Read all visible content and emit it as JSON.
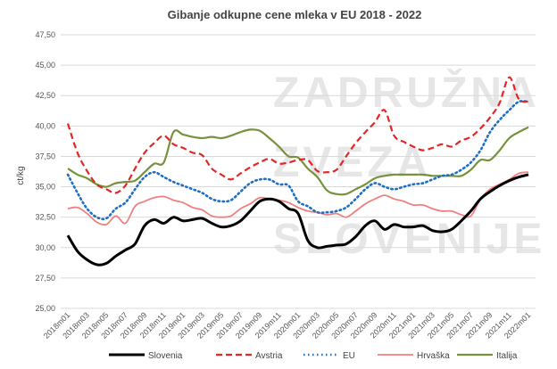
{
  "chart_data": {
    "type": "line",
    "title": "Gibanje odkupne cene mleka v EU 2018 - 2022",
    "ylabel": "ct/kg",
    "xlabel": "",
    "ylim": [
      25,
      47.5
    ],
    "yticks": [
      "25,00",
      "27,50",
      "30,00",
      "32,50",
      "35,00",
      "37,50",
      "40,00",
      "42,50",
      "45,00",
      "47,50"
    ],
    "grid": true,
    "legend": "bottom",
    "watermark": [
      "ZADRUŽNA",
      "ZVEZA",
      "SLOVENIJE"
    ],
    "x": [
      "2018m01",
      "2018m02",
      "2018m03",
      "2018m04",
      "2018m05",
      "2018m06",
      "2018m07",
      "2018m08",
      "2018m09",
      "2018m10",
      "2018m11",
      "2018m12",
      "2019m01",
      "2019m02",
      "2019m03",
      "2019m04",
      "2019m05",
      "2019m06",
      "2019m07",
      "2019m08",
      "2019m09",
      "2019m10",
      "2019m11",
      "2019m12",
      "2020m01",
      "2020m02",
      "2020m03",
      "2020m04",
      "2020m05",
      "2020m06",
      "2020m07",
      "2020m08",
      "2020m09",
      "2020m10",
      "2020m11",
      "2020m12",
      "2021m01",
      "2021m02",
      "2021m03",
      "2021m04",
      "2021m05",
      "2021m06",
      "2021m07",
      "2021m08",
      "2021m09",
      "2021m10",
      "2021m11",
      "2021m12",
      "2022m01"
    ],
    "xticks": [
      "2018m01",
      "2018m03",
      "2018m05",
      "2018m07",
      "2018m09",
      "2018m11",
      "2019m01",
      "2019m03",
      "2019m05",
      "2019m07",
      "2019m09",
      "2019m11",
      "2020m01",
      "2020m03",
      "2020m05",
      "2020m07",
      "2020m09",
      "2020m11",
      "2021m01",
      "2021m03",
      "2021m05",
      "2021m07",
      "2021m09",
      "2021m11",
      "2022m01"
    ],
    "series": [
      {
        "name": "Slovenia",
        "color": "#000000",
        "dash": "solid",
        "values": [
          31.0,
          29.7,
          29.0,
          28.6,
          28.7,
          29.3,
          29.8,
          30.3,
          31.8,
          32.3,
          32.0,
          32.5,
          32.2,
          32.3,
          32.4,
          32.0,
          31.7,
          31.8,
          32.2,
          33.0,
          33.8,
          34.0,
          33.8,
          33.2,
          32.8,
          30.6,
          30.0,
          30.1,
          30.2,
          30.3,
          30.9,
          31.8,
          32.2,
          31.5,
          31.9,
          31.7,
          31.7,
          31.8,
          31.4,
          31.3,
          31.5,
          32.2,
          33.0,
          34.0,
          34.6,
          35.1,
          35.5,
          35.8,
          36.0
        ]
      },
      {
        "name": "Avstria",
        "color": "#e32626",
        "dash": "dashed",
        "values": [
          40.2,
          37.8,
          36.3,
          35.2,
          34.8,
          34.5,
          35.1,
          36.5,
          37.8,
          38.6,
          39.2,
          38.5,
          38.2,
          37.8,
          37.6,
          36.5,
          36.0,
          35.6,
          36.1,
          36.6,
          37.0,
          37.3,
          36.9,
          37.0,
          37.2,
          37.2,
          36.3,
          36.2,
          36.4,
          37.5,
          38.6,
          39.5,
          40.3,
          41.3,
          39.2,
          38.7,
          38.3,
          38.0,
          38.2,
          38.5,
          38.3,
          38.8,
          39.1,
          39.8,
          40.7,
          41.9,
          44.0,
          42.2,
          42.0
        ]
      },
      {
        "name": "EU",
        "color": "#1f6fc2",
        "dash": "dotted",
        "values": [
          36.0,
          34.5,
          33.2,
          32.5,
          32.4,
          33.2,
          33.7,
          34.8,
          35.8,
          36.2,
          35.8,
          35.4,
          35.1,
          34.8,
          34.5,
          34.0,
          33.8,
          33.9,
          34.6,
          35.3,
          35.6,
          35.6,
          35.2,
          35.1,
          33.8,
          33.4,
          32.9,
          32.9,
          33.0,
          33.3,
          34.0,
          34.8,
          35.3,
          35.0,
          34.8,
          35.0,
          35.2,
          35.3,
          35.6,
          35.9,
          36.0,
          36.4,
          37.0,
          38.0,
          39.5,
          40.5,
          41.3,
          42.0,
          42.0
        ]
      },
      {
        "name": "Hrvaška",
        "color": "#f08080",
        "dash": "solid",
        "values": [
          33.2,
          33.3,
          32.8,
          32.1,
          31.9,
          32.6,
          32.0,
          33.4,
          33.8,
          34.1,
          34.2,
          33.9,
          33.7,
          33.3,
          33.1,
          32.6,
          32.5,
          32.6,
          33.2,
          33.6,
          34.1,
          34.0,
          33.9,
          33.7,
          33.3,
          33.0,
          32.9,
          32.7,
          32.8,
          32.5,
          33.0,
          33.6,
          34.0,
          34.3,
          34.0,
          33.8,
          33.5,
          33.5,
          33.2,
          33.0,
          33.0,
          32.7,
          32.6,
          34.0,
          34.8,
          35.2,
          35.6,
          36.1,
          36.2
        ]
      },
      {
        "name": "Italija",
        "color": "#76923c",
        "dash": "solid",
        "values": [
          36.5,
          36.0,
          35.7,
          35.2,
          35.0,
          35.3,
          35.4,
          35.5,
          36.2,
          36.9,
          37.0,
          39.5,
          39.3,
          39.1,
          39.0,
          39.1,
          39.0,
          39.2,
          39.5,
          39.7,
          39.6,
          39.0,
          38.3,
          37.5,
          37.4,
          36.5,
          35.8,
          34.7,
          34.4,
          34.4,
          34.8,
          35.2,
          35.7,
          35.9,
          36.0,
          36.0,
          36.0,
          36.0,
          35.9,
          35.9,
          35.9,
          35.9,
          36.4,
          37.2,
          37.2,
          38.0,
          39.0,
          39.5,
          39.9
        ]
      }
    ]
  }
}
